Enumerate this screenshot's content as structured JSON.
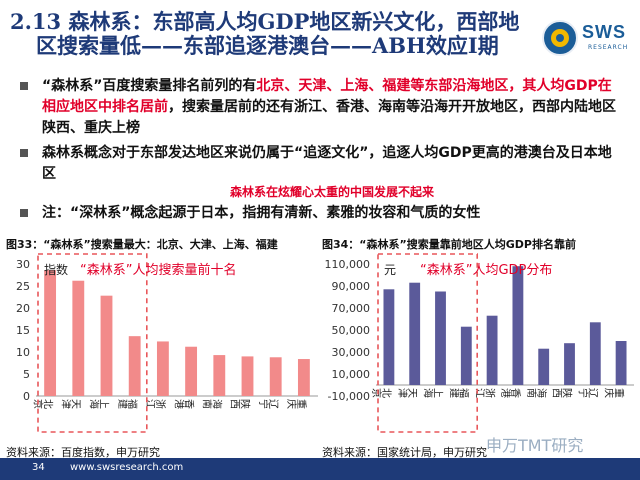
{
  "title": {
    "line1": "2.13 森林系：东部高人均GDP地区新兴文化，西部地",
    "line2": "区搜索量低——东部追逐港澳台——ABH效应I期"
  },
  "logo": {
    "brand": "SWS",
    "sub": "RESEARCH"
  },
  "bullets": [
    {
      "parts": [
        {
          "t": "“森林系”百度搜索量排名前列的有",
          "red": false
        },
        {
          "t": "北京、天津、上海、福建等东部沿海地区，其人均GDP在相应地区中排名居前",
          "red": true
        },
        {
          "t": "，搜索量居前的还有浙江、香港、海南等沿海开开放地区，西部内陆地区陕西、重庆上榜",
          "red": false
        }
      ]
    },
    {
      "parts": [
        {
          "t": "森林系概念对于东部发达地区来说仍属于“追逐文化”，追逐人均GDP更高的港澳台及日本地区",
          "red": false
        }
      ]
    },
    {
      "parts": [
        {
          "t": "注：“深林系”概念起源于日本，指拥有清新、素雅的妆容和气质的女性",
          "red": false
        }
      ]
    }
  ],
  "annotation": "森林系在炫耀心太重的中国发展不起来",
  "chart1_title": "图33：“森林系”搜索量最大：北京、大津、上海、福建",
  "chart2_title": "图34：“森林系”搜索量靠前地区人均GDP排名靠前",
  "source1": "资料来源：百度指数，申万研究",
  "source2": "资料来源：国家统计局，申万研究",
  "footer": {
    "page": "34",
    "url": "www.swsresearch.com"
  },
  "watermark": "申万TMT研究",
  "colors": {
    "bar1": "#f28a8a",
    "bar2": "#5b5a9a",
    "dashed": "#e8575a",
    "overlay": "#e1002a"
  },
  "chart_data": [
    {
      "type": "bar",
      "categories": [
        "北京",
        "天津",
        "上海",
        "福建",
        "浙江",
        "香港",
        "海南",
        "陕西",
        "辽宁",
        "重庆"
      ],
      "values": [
        28.6,
        26.2,
        22.8,
        13.6,
        12.4,
        11.2,
        9.3,
        9.0,
        8.8,
        8.4
      ],
      "ylim": [
        0,
        30
      ],
      "yticks": [
        "0",
        "5",
        "10",
        "15",
        "20",
        "25",
        "30"
      ],
      "highlight_count": 4,
      "overlay_prefix": "指数",
      "overlay_label": "“森林系”人均搜索量前十名"
    },
    {
      "type": "bar",
      "categories": [
        "北京",
        "天津",
        "上海",
        "福建",
        "浙江",
        "香港",
        "海南",
        "陕西",
        "辽宁",
        "重庆"
      ],
      "values": [
        87000,
        93000,
        85000,
        53000,
        63000,
        108000,
        33000,
        38000,
        57000,
        40000
      ],
      "ylim": [
        -10000,
        110000
      ],
      "yticks": [
        "-10,000",
        "10,000",
        "30,000",
        "50,000",
        "70,000",
        "90,000",
        "110,000"
      ],
      "highlight_count": 4,
      "overlay_prefix": "元",
      "overlay_label": "“森林系”人均GDP分布"
    }
  ]
}
